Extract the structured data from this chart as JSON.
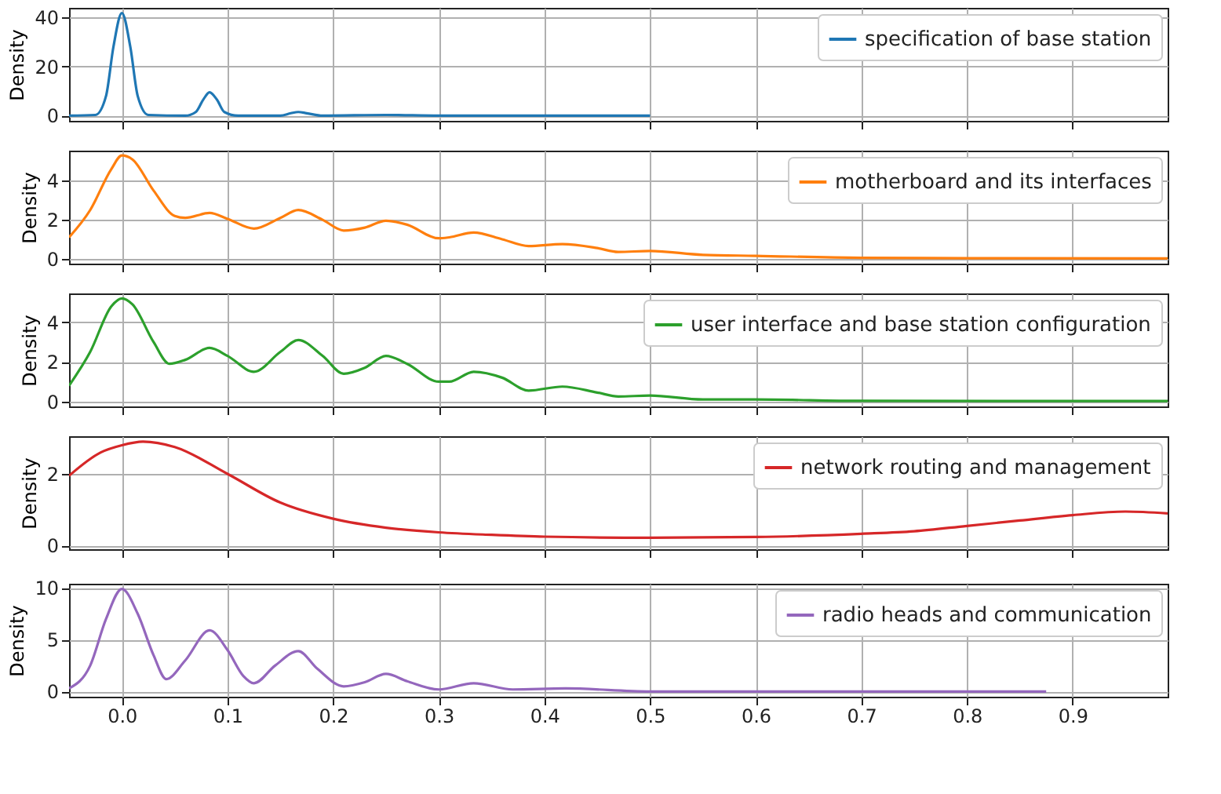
{
  "chart_data": [
    {
      "type": "line",
      "ylabel": "Density",
      "legend": "top right",
      "grid": true,
      "tick_labels": "y",
      "xlim": [
        -0.05,
        0.99
      ],
      "xticks": [
        0,
        0.1,
        0.2,
        0.3,
        0.4,
        0.5,
        0.6,
        0.7,
        0.8,
        0.9
      ],
      "ylim": [
        -2.1,
        43.9
      ],
      "yticks": [
        0,
        20,
        40
      ],
      "x": [
        -0.05,
        -0.025,
        -0.015,
        -0.008,
        0,
        0.008,
        0.015,
        0.025,
        0.06,
        0.07,
        0.077,
        0.083,
        0.09,
        0.097,
        0.11,
        0.15,
        0.16,
        0.167,
        0.175,
        0.19,
        0.25,
        0.3,
        0.5
      ],
      "series": [
        {
          "name": "specification of base station",
          "color": "#1f77b4",
          "values": [
            0,
            0.3,
            8,
            28,
            41.8,
            28,
            8,
            0.3,
            0,
            1.5,
            6.5,
            9.5,
            6.5,
            1.5,
            0,
            0,
            1,
            1.5,
            1,
            0,
            0.3,
            0,
            0
          ]
        }
      ]
    },
    {
      "type": "line",
      "ylabel": "Density",
      "legend": "top right",
      "grid": true,
      "tick_labels": "y",
      "xlim": [
        -0.05,
        0.99
      ],
      "xticks": [
        0,
        0.1,
        0.2,
        0.3,
        0.4,
        0.5,
        0.6,
        0.7,
        0.8,
        0.9
      ],
      "ylim": [
        -0.25,
        5.55
      ],
      "yticks": [
        0,
        2,
        4
      ],
      "x": [
        -0.05,
        -0.03,
        -0.01,
        0,
        0.01,
        0.03,
        0.05,
        0.06,
        0.083,
        0.1,
        0.125,
        0.15,
        0.167,
        0.19,
        0.21,
        0.23,
        0.25,
        0.27,
        0.3,
        0.31,
        0.333,
        0.36,
        0.385,
        0.417,
        0.45,
        0.47,
        0.5,
        0.55,
        0.6,
        0.7,
        0.8,
        0.99
      ],
      "series": [
        {
          "name": "motherboard and its interfaces",
          "color": "#ff7f0e",
          "values": [
            1.1,
            2.5,
            4.6,
            5.3,
            5.1,
            3.5,
            2.2,
            2.1,
            2.35,
            2.05,
            1.55,
            2.1,
            2.5,
            2.0,
            1.45,
            1.6,
            1.95,
            1.75,
            1.05,
            1.1,
            1.35,
            1.0,
            0.65,
            0.75,
            0.55,
            0.35,
            0.4,
            0.2,
            0.15,
            0.05,
            0.03,
            0.02
          ]
        }
      ]
    },
    {
      "type": "line",
      "ylabel": "Density",
      "legend": "top right",
      "grid": true,
      "tick_labels": "y",
      "xlim": [
        -0.05,
        0.99
      ],
      "xticks": [
        0,
        0.1,
        0.2,
        0.3,
        0.4,
        0.5,
        0.6,
        0.7,
        0.8,
        0.9
      ],
      "ylim": [
        -0.25,
        5.45
      ],
      "yticks": [
        0,
        2,
        4
      ],
      "x": [
        -0.05,
        -0.03,
        -0.01,
        0,
        0.01,
        0.03,
        0.045,
        0.06,
        0.083,
        0.1,
        0.125,
        0.15,
        0.167,
        0.19,
        0.21,
        0.23,
        0.25,
        0.27,
        0.3,
        0.31,
        0.333,
        0.36,
        0.385,
        0.417,
        0.45,
        0.47,
        0.5,
        0.55,
        0.6,
        0.7,
        0.99
      ],
      "series": [
        {
          "name": "user interface and base station configuration",
          "color": "#2ca02c",
          "values": [
            0.8,
            2.5,
            4.8,
            5.2,
            4.9,
            3.0,
            1.9,
            2.1,
            2.7,
            2.3,
            1.5,
            2.5,
            3.1,
            2.3,
            1.4,
            1.7,
            2.3,
            1.9,
            1.0,
            1.0,
            1.5,
            1.2,
            0.55,
            0.75,
            0.45,
            0.25,
            0.3,
            0.1,
            0.1,
            0.03,
            0.02
          ]
        }
      ]
    },
    {
      "type": "line",
      "ylabel": "Density",
      "legend": "top right",
      "grid": true,
      "tick_labels": "y",
      "xlim": [
        -0.05,
        0.99
      ],
      "xticks": [
        0,
        0.1,
        0.2,
        0.3,
        0.4,
        0.5,
        0.6,
        0.7,
        0.8,
        0.9
      ],
      "ylim": [
        -0.1,
        3.05
      ],
      "yticks": [
        0,
        2
      ],
      "x": [
        -0.05,
        -0.02,
        0,
        0.02,
        0.05,
        0.1,
        0.15,
        0.2,
        0.25,
        0.3,
        0.35,
        0.4,
        0.5,
        0.6,
        0.7,
        0.75,
        0.8,
        0.85,
        0.9,
        0.95,
        0.99
      ],
      "series": [
        {
          "name": "network routing and management",
          "color": "#d62728",
          "values": [
            1.95,
            2.6,
            2.8,
            2.9,
            2.75,
            2.0,
            1.2,
            0.75,
            0.5,
            0.37,
            0.3,
            0.25,
            0.22,
            0.24,
            0.33,
            0.4,
            0.55,
            0.7,
            0.85,
            0.95,
            0.9
          ]
        }
      ]
    },
    {
      "type": "line",
      "ylabel": "Density",
      "legend": "top right",
      "grid": true,
      "xlim": [
        -0.05,
        0.99
      ],
      "xticks": [
        {
          "value": 0,
          "label": "0.0"
        },
        {
          "value": 0.1,
          "label": "0.1"
        },
        {
          "value": 0.2,
          "label": "0.2"
        },
        {
          "value": 0.3,
          "label": "0.3"
        },
        {
          "value": 0.4,
          "label": "0.4"
        },
        {
          "value": 0.5,
          "label": "0.5"
        },
        {
          "value": 0.6,
          "label": "0.6"
        },
        {
          "value": 0.7,
          "label": "0.7"
        },
        {
          "value": 0.8,
          "label": "0.8"
        },
        {
          "value": 0.9,
          "label": "0.9"
        }
      ],
      "ylim": [
        -0.5,
        10.4
      ],
      "yticks": [
        0,
        5,
        10
      ],
      "x": [
        -0.05,
        -0.03,
        -0.015,
        0,
        0.015,
        0.03,
        0.042,
        0.06,
        0.083,
        0.1,
        0.115,
        0.125,
        0.145,
        0.167,
        0.185,
        0.21,
        0.23,
        0.25,
        0.27,
        0.3,
        0.333,
        0.37,
        0.42,
        0.5,
        0.6,
        0.875
      ],
      "series": [
        {
          "name": "radio heads and communication",
          "color": "#9467bd",
          "values": [
            0.3,
            2.5,
            7,
            9.9,
            7.5,
            3.5,
            1.2,
            3.0,
            5.9,
            4.0,
            1.5,
            0.8,
            2.5,
            3.9,
            2.2,
            0.5,
            0.9,
            1.7,
            1.0,
            0.2,
            0.8,
            0.2,
            0.3,
            0,
            0,
            0
          ]
        }
      ]
    }
  ]
}
